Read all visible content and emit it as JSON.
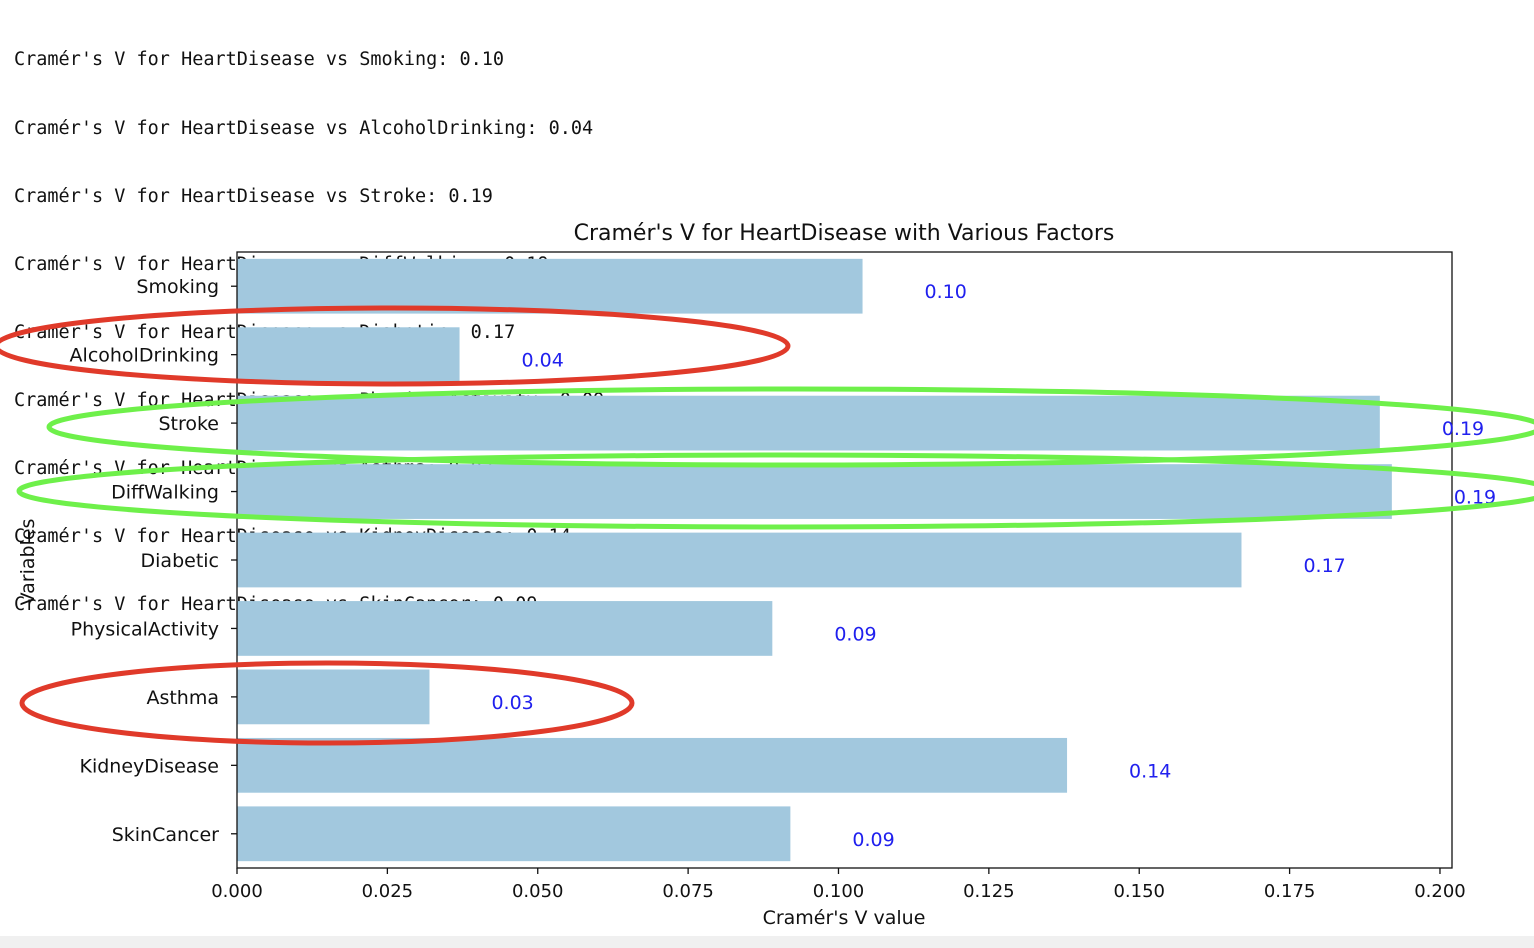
{
  "output_lines": [
    "Cramér's V for HeartDisease vs Smoking: 0.10",
    "Cramér's V for HeartDisease vs AlcoholDrinking: 0.04",
    "Cramér's V for HeartDisease vs Stroke: 0.19",
    "Cramér's V for HeartDisease vs DiffWalking: 0.19",
    "Cramér's V for HeartDisease vs Diabetic: 0.17",
    "Cramér's V for HeartDisease vs PhysicalActivity: 0.09",
    "Cramér's V for HeartDisease vs Asthma: 0.03",
    "Cramér's V for HeartDisease vs KidneyDisease: 0.14",
    "Cramér's V for HeartDisease vs SkinCancer: 0.09"
  ],
  "chart_data": {
    "type": "bar",
    "orientation": "horizontal",
    "title": "Cramér's V for HeartDisease with Various Factors",
    "xlabel": "Cramér's V value",
    "ylabel": "Variables",
    "categories": [
      "Smoking",
      "AlcoholDrinking",
      "Stroke",
      "DiffWalking",
      "Diabetic",
      "PhysicalActivity",
      "Asthma",
      "KidneyDisease",
      "SkinCancer"
    ],
    "values": [
      0.104,
      0.037,
      0.19,
      0.192,
      0.167,
      0.089,
      0.032,
      0.138,
      0.092
    ],
    "data_labels": [
      "0.10",
      "0.04",
      "0.19",
      "0.19",
      "0.17",
      "0.09",
      "0.03",
      "0.14",
      "0.09"
    ],
    "xlim": [
      0,
      0.202
    ],
    "x_ticks": [
      0.0,
      0.025,
      0.05,
      0.075,
      0.1,
      0.125,
      0.15,
      0.175,
      0.2
    ],
    "x_tick_labels": [
      "0.000",
      "0.025",
      "0.050",
      "0.075",
      "0.100",
      "0.125",
      "0.150",
      "0.175",
      "0.200"
    ],
    "grid": false,
    "colors": {
      "bar": "#a2c8de",
      "label": "#2020ee",
      "highlight_red": "#e03a2a",
      "highlight_green": "#6ef04a"
    },
    "highlights": [
      {
        "category": "AlcoholDrinking",
        "color": "red"
      },
      {
        "category": "Stroke",
        "color": "green"
      },
      {
        "category": "DiffWalking",
        "color": "green"
      },
      {
        "category": "Asthma",
        "color": "red"
      }
    ]
  }
}
